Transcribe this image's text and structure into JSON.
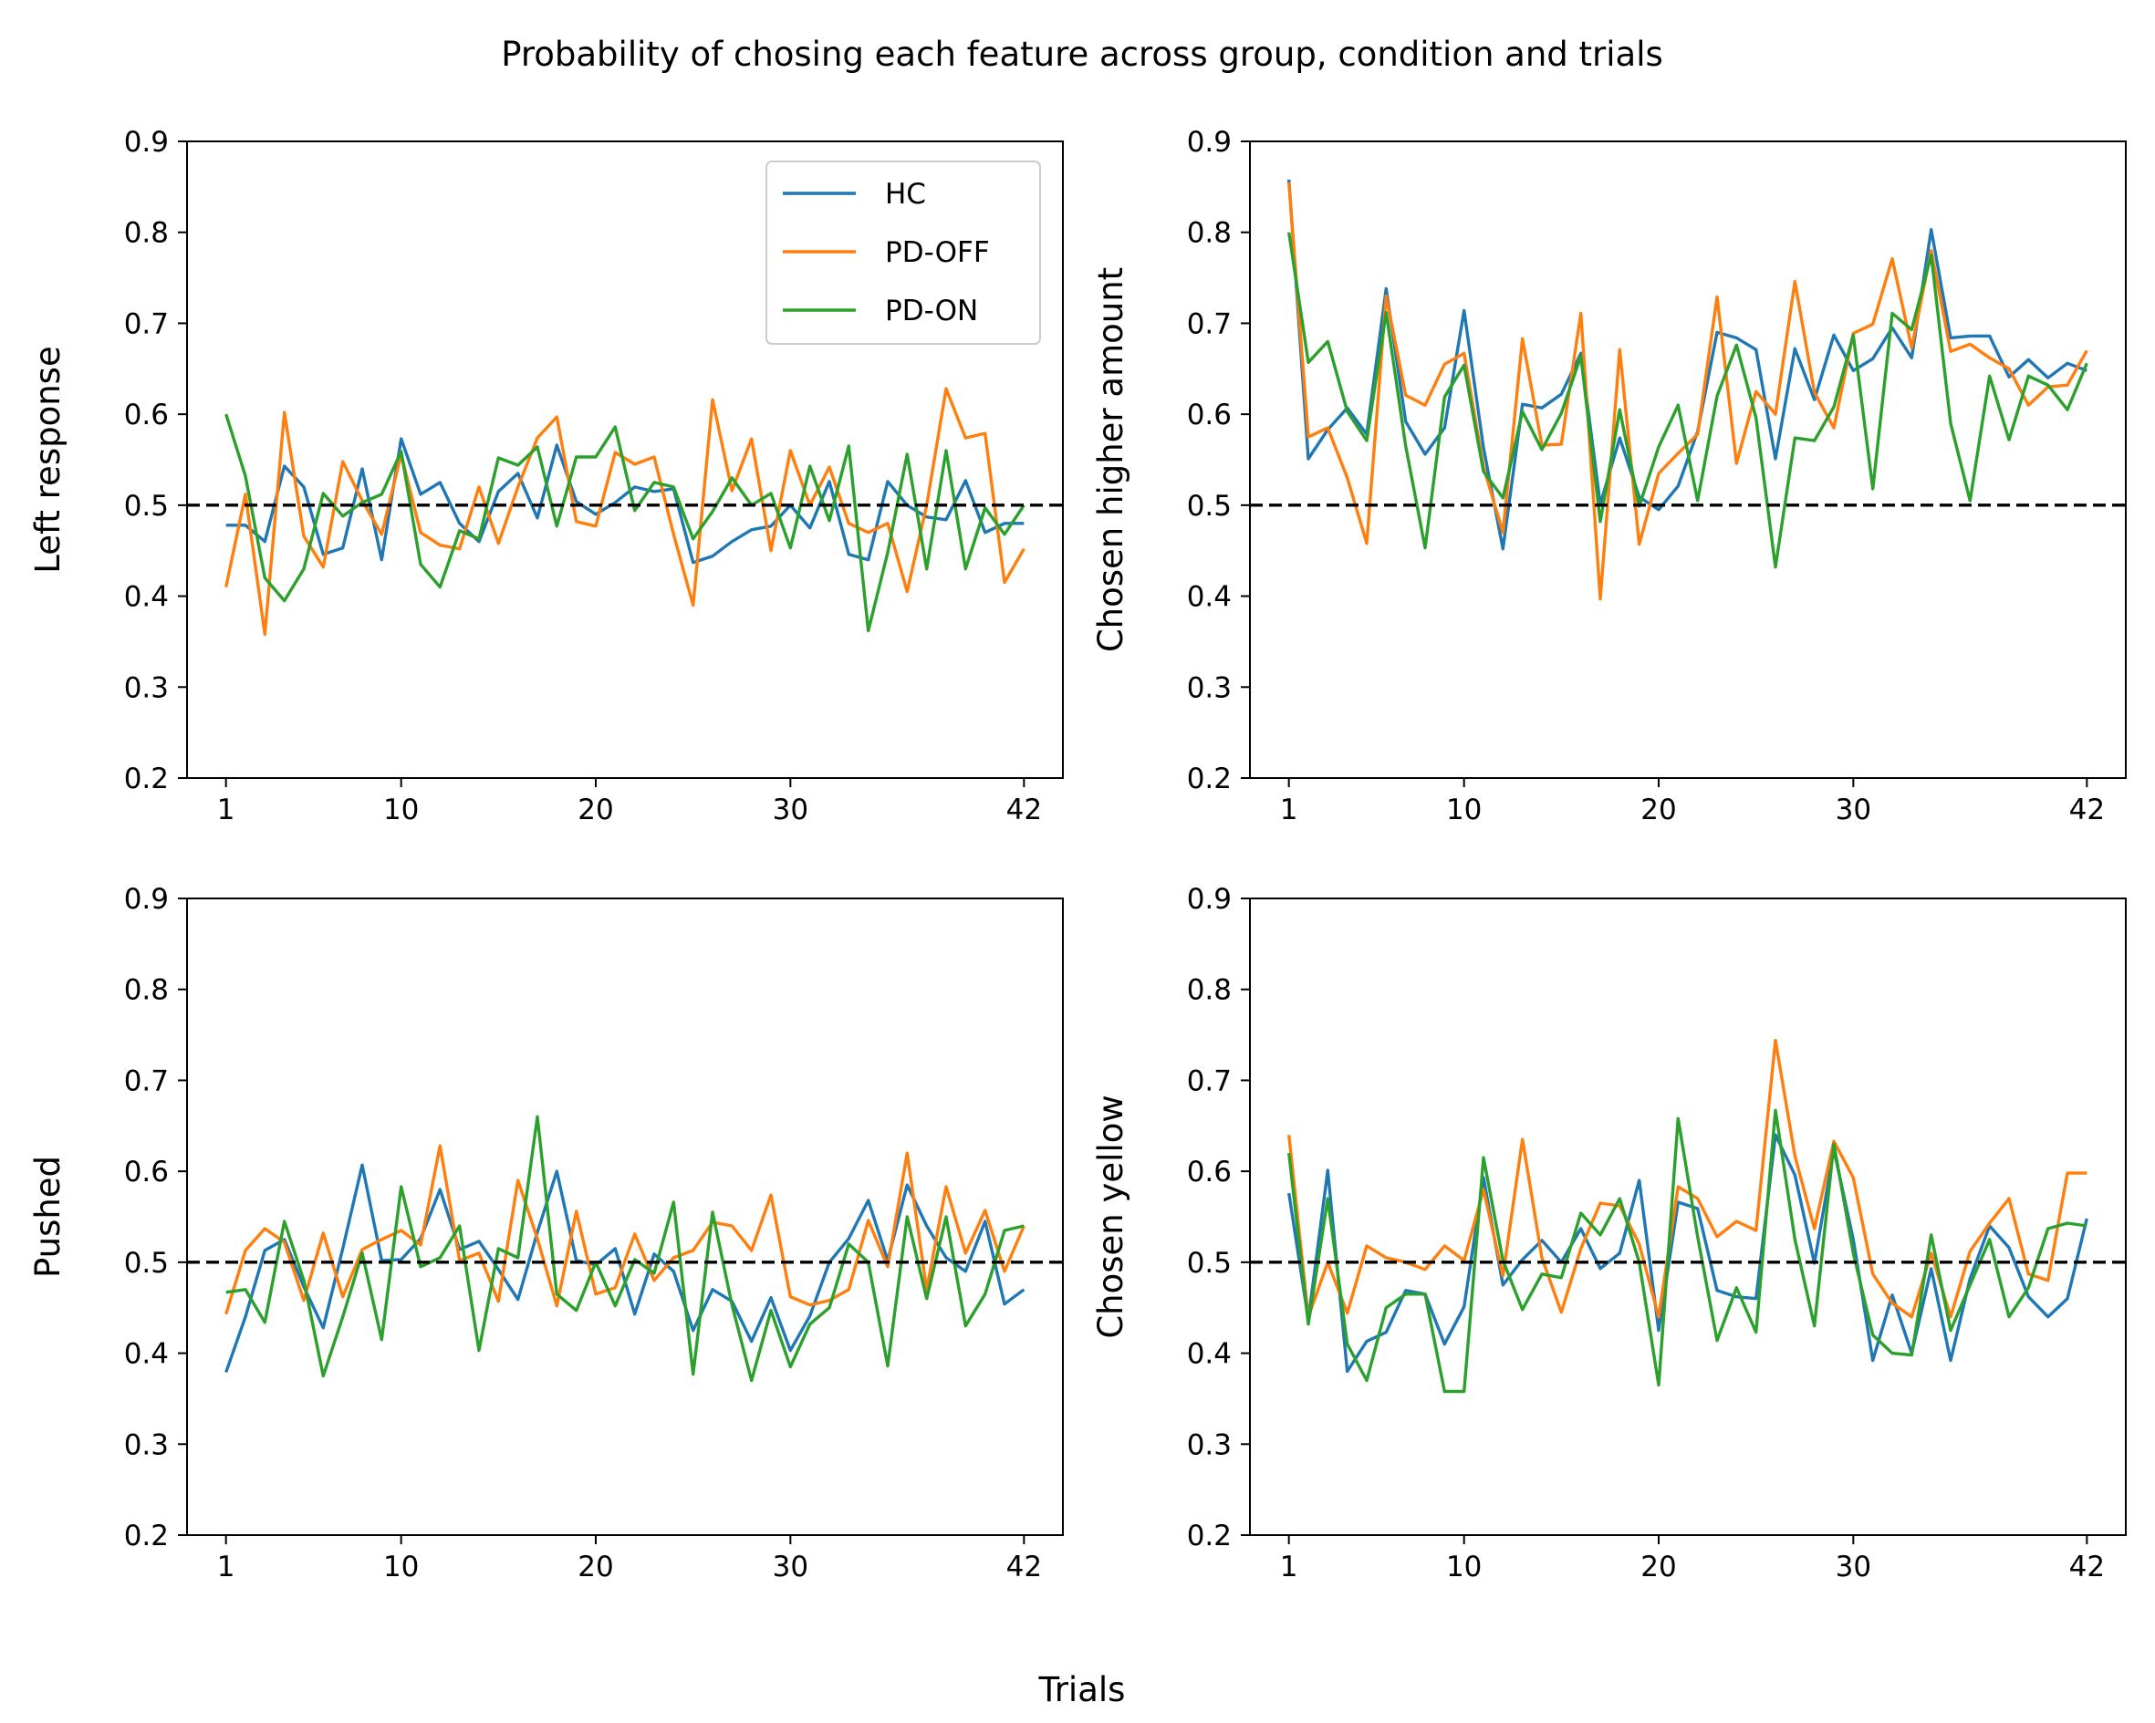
{
  "title": "Probability of chosing each feature across group, condition and trials",
  "xlabel": "Trials",
  "colors": {
    "HC": "#1f77b4",
    "PD-OFF": "#ff7f0e",
    "PD-ON": "#2ca02c",
    "reference": "#000000"
  },
  "legend": {
    "placement": "upper right of first panel",
    "entries": [
      "HC",
      "PD-OFF",
      "PD-ON"
    ]
  },
  "chart_data": [
    {
      "type": "line",
      "ylabel": "Left response",
      "xlim": [
        -1,
        44
      ],
      "ylim": [
        0.2,
        0.9
      ],
      "xticks": [
        1,
        10,
        20,
        30,
        42
      ],
      "yticks": [
        "0.2",
        "0.3",
        "0.4",
        "0.5",
        "0.6",
        "0.7",
        "0.8",
        "0.9"
      ],
      "reference_line": 0.5,
      "x": [
        1,
        2,
        3,
        4,
        5,
        6,
        7,
        8,
        9,
        10,
        11,
        12,
        13,
        14,
        15,
        16,
        17,
        18,
        19,
        20,
        21,
        22,
        23,
        24,
        25,
        26,
        27,
        28,
        29,
        30,
        31,
        32,
        33,
        34,
        35,
        36,
        37,
        38,
        39,
        40,
        41,
        42
      ],
      "series": [
        {
          "name": "HC",
          "values": [
            0.478,
            0.478,
            0.46,
            0.543,
            0.52,
            0.446,
            0.453,
            0.54,
            0.44,
            0.573,
            0.512,
            0.525,
            0.48,
            0.46,
            0.515,
            0.535,
            0.486,
            0.566,
            0.504,
            0.49,
            0.503,
            0.52,
            0.515,
            0.518,
            0.437,
            0.444,
            0.46,
            0.473,
            0.477,
            0.5,
            0.475,
            0.526,
            0.446,
            0.44,
            0.526,
            0.5,
            0.487,
            0.484,
            0.527,
            0.47,
            0.48,
            0.48
          ]
        },
        {
          "name": "PD-OFF",
          "values": [
            0.41,
            0.512,
            0.358,
            0.602,
            0.466,
            0.432,
            0.548,
            0.505,
            0.468,
            0.556,
            0.47,
            0.456,
            0.452,
            0.52,
            0.458,
            0.52,
            0.574,
            0.597,
            0.482,
            0.477,
            0.558,
            0.545,
            0.553,
            0.468,
            0.39,
            0.616,
            0.516,
            0.573,
            0.45,
            0.56,
            0.5,
            0.542,
            0.48,
            0.47,
            0.48,
            0.405,
            0.5,
            0.628,
            0.574,
            0.579,
            0.415,
            0.452
          ]
        },
        {
          "name": "PD-ON",
          "values": [
            0.6,
            0.532,
            0.42,
            0.395,
            0.43,
            0.513,
            0.488,
            0.503,
            0.512,
            0.559,
            0.435,
            0.41,
            0.472,
            0.463,
            0.552,
            0.544,
            0.564,
            0.477,
            0.553,
            0.553,
            0.586,
            0.494,
            0.525,
            0.52,
            0.463,
            0.493,
            0.53,
            0.5,
            0.513,
            0.453,
            0.543,
            0.483,
            0.565,
            0.362,
            0.448,
            0.556,
            0.43,
            0.56,
            0.43,
            0.497,
            0.468,
            0.5
          ]
        }
      ]
    },
    {
      "type": "line",
      "ylabel": "Chosen higher amount",
      "xlim": [
        -1,
        44
      ],
      "ylim": [
        0.2,
        0.9
      ],
      "xticks": [
        1,
        10,
        20,
        30,
        42
      ],
      "yticks": [
        "0.2",
        "0.3",
        "0.4",
        "0.5",
        "0.6",
        "0.7",
        "0.8",
        "0.9"
      ],
      "reference_line": 0.5,
      "x": [
        1,
        2,
        3,
        4,
        5,
        6,
        7,
        8,
        9,
        10,
        11,
        12,
        13,
        14,
        15,
        16,
        17,
        18,
        19,
        20,
        21,
        22,
        23,
        24,
        25,
        26,
        27,
        28,
        29,
        30,
        31,
        32,
        33,
        34,
        35,
        36,
        37,
        38,
        39,
        40,
        41,
        42
      ],
      "series": [
        {
          "name": "HC",
          "values": [
            0.858,
            0.551,
            0.583,
            0.607,
            0.578,
            0.738,
            0.592,
            0.556,
            0.585,
            0.714,
            0.563,
            0.452,
            0.611,
            0.607,
            0.622,
            0.667,
            0.501,
            0.574,
            0.509,
            0.495,
            0.521,
            0.581,
            0.69,
            0.684,
            0.671,
            0.551,
            0.672,
            0.616,
            0.687,
            0.648,
            0.661,
            0.695,
            0.662,
            0.803,
            0.684,
            0.686,
            0.686,
            0.641,
            0.66,
            0.64,
            0.656,
            0.648
          ]
        },
        {
          "name": "PD-OFF",
          "values": [
            0.855,
            0.575,
            0.585,
            0.53,
            0.458,
            0.73,
            0.621,
            0.61,
            0.655,
            0.667,
            0.542,
            0.47,
            0.683,
            0.566,
            0.567,
            0.711,
            0.397,
            0.671,
            0.457,
            0.535,
            0.557,
            0.578,
            0.729,
            0.546,
            0.625,
            0.6,
            0.746,
            0.624,
            0.585,
            0.689,
            0.699,
            0.771,
            0.673,
            0.78,
            0.669,
            0.677,
            0.662,
            0.65,
            0.61,
            0.63,
            0.632,
            0.67
          ]
        },
        {
          "name": "PD-ON",
          "values": [
            0.8,
            0.657,
            0.68,
            0.603,
            0.571,
            0.712,
            0.565,
            0.453,
            0.619,
            0.654,
            0.537,
            0.508,
            0.603,
            0.561,
            0.601,
            0.664,
            0.482,
            0.605,
            0.499,
            0.564,
            0.61,
            0.505,
            0.62,
            0.676,
            0.596,
            0.432,
            0.574,
            0.571,
            0.608,
            0.687,
            0.518,
            0.711,
            0.693,
            0.775,
            0.59,
            0.505,
            0.642,
            0.572,
            0.642,
            0.632,
            0.605,
            0.656
          ]
        }
      ]
    },
    {
      "type": "line",
      "ylabel": "Pushed",
      "xlim": [
        -1,
        44
      ],
      "ylim": [
        0.2,
        0.9
      ],
      "xticks": [
        1,
        10,
        20,
        30,
        42
      ],
      "yticks": [
        "0.2",
        "0.3",
        "0.4",
        "0.5",
        "0.6",
        "0.7",
        "0.8",
        "0.9"
      ],
      "reference_line": 0.5,
      "x": [
        1,
        2,
        3,
        4,
        5,
        6,
        7,
        8,
        9,
        10,
        11,
        12,
        13,
        14,
        15,
        16,
        17,
        18,
        19,
        20,
        21,
        22,
        23,
        24,
        25,
        26,
        27,
        28,
        29,
        30,
        31,
        32,
        33,
        34,
        35,
        36,
        37,
        38,
        39,
        40,
        41,
        42
      ],
      "series": [
        {
          "name": "HC",
          "values": [
            0.379,
            0.44,
            0.513,
            0.525,
            0.473,
            0.428,
            0.515,
            0.607,
            0.502,
            0.503,
            0.526,
            0.58,
            0.514,
            0.523,
            0.492,
            0.459,
            0.533,
            0.6,
            0.502,
            0.497,
            0.515,
            0.443,
            0.509,
            0.49,
            0.425,
            0.47,
            0.457,
            0.413,
            0.461,
            0.403,
            0.441,
            0.5,
            0.526,
            0.568,
            0.502,
            0.585,
            0.54,
            0.505,
            0.49,
            0.545,
            0.454,
            0.47
          ]
        },
        {
          "name": "PD-OFF",
          "values": [
            0.443,
            0.513,
            0.537,
            0.522,
            0.458,
            0.532,
            0.462,
            0.514,
            0.525,
            0.535,
            0.519,
            0.628,
            0.502,
            0.51,
            0.457,
            0.59,
            0.526,
            0.452,
            0.556,
            0.465,
            0.472,
            0.531,
            0.48,
            0.505,
            0.513,
            0.544,
            0.54,
            0.513,
            0.574,
            0.462,
            0.453,
            0.458,
            0.47,
            0.546,
            0.495,
            0.62,
            0.47,
            0.583,
            0.51,
            0.557,
            0.49,
            0.54
          ]
        },
        {
          "name": "PD-ON",
          "values": [
            0.467,
            0.47,
            0.434,
            0.545,
            0.48,
            0.375,
            0.44,
            0.51,
            0.415,
            0.583,
            0.495,
            0.505,
            0.54,
            0.403,
            0.515,
            0.505,
            0.66,
            0.465,
            0.447,
            0.5,
            0.452,
            0.503,
            0.488,
            0.566,
            0.377,
            0.555,
            0.453,
            0.37,
            0.447,
            0.385,
            0.432,
            0.45,
            0.52,
            0.5,
            0.386,
            0.55,
            0.46,
            0.55,
            0.43,
            0.465,
            0.535,
            0.54
          ]
        }
      ]
    },
    {
      "type": "line",
      "ylabel": "Chosen yellow",
      "xlim": [
        -1,
        44
      ],
      "ylim": [
        0.2,
        0.9
      ],
      "xticks": [
        1,
        10,
        20,
        30,
        42
      ],
      "yticks": [
        "0.2",
        "0.3",
        "0.4",
        "0.5",
        "0.6",
        "0.7",
        "0.8",
        "0.9"
      ],
      "reference_line": 0.5,
      "x": [
        1,
        2,
        3,
        4,
        5,
        6,
        7,
        8,
        9,
        10,
        11,
        12,
        13,
        14,
        15,
        16,
        17,
        18,
        19,
        20,
        21,
        22,
        23,
        24,
        25,
        26,
        27,
        28,
        29,
        30,
        31,
        32,
        33,
        34,
        35,
        36,
        37,
        38,
        39,
        40,
        41,
        42
      ],
      "series": [
        {
          "name": "HC",
          "values": [
            0.576,
            0.437,
            0.601,
            0.38,
            0.413,
            0.423,
            0.469,
            0.465,
            0.41,
            0.451,
            0.593,
            0.475,
            0.503,
            0.524,
            0.5,
            0.537,
            0.493,
            0.51,
            0.59,
            0.425,
            0.566,
            0.559,
            0.469,
            0.462,
            0.46,
            0.64,
            0.596,
            0.499,
            0.624,
            0.525,
            0.392,
            0.464,
            0.4,
            0.493,
            0.392,
            0.482,
            0.54,
            0.516,
            0.462,
            0.44,
            0.46,
            0.548
          ]
        },
        {
          "name": "PD-OFF",
          "values": [
            0.64,
            0.44,
            0.5,
            0.444,
            0.518,
            0.505,
            0.5,
            0.492,
            0.518,
            0.502,
            0.58,
            0.485,
            0.635,
            0.505,
            0.445,
            0.515,
            0.565,
            0.562,
            0.52,
            0.44,
            0.583,
            0.57,
            0.528,
            0.545,
            0.535,
            0.744,
            0.617,
            0.537,
            0.633,
            0.593,
            0.487,
            0.455,
            0.44,
            0.51,
            0.44,
            0.512,
            0.543,
            0.57,
            0.487,
            0.48,
            0.598,
            0.598
          ]
        },
        {
          "name": "PD-ON",
          "values": [
            0.62,
            0.432,
            0.57,
            0.41,
            0.37,
            0.45,
            0.465,
            0.465,
            0.358,
            0.358,
            0.615,
            0.502,
            0.448,
            0.487,
            0.483,
            0.554,
            0.53,
            0.57,
            0.5,
            0.365,
            0.658,
            0.528,
            0.414,
            0.472,
            0.423,
            0.667,
            0.525,
            0.43,
            0.63,
            0.51,
            0.42,
            0.4,
            0.398,
            0.53,
            0.425,
            0.475,
            0.525,
            0.44,
            0.472,
            0.537,
            0.543,
            0.54
          ]
        }
      ]
    }
  ]
}
